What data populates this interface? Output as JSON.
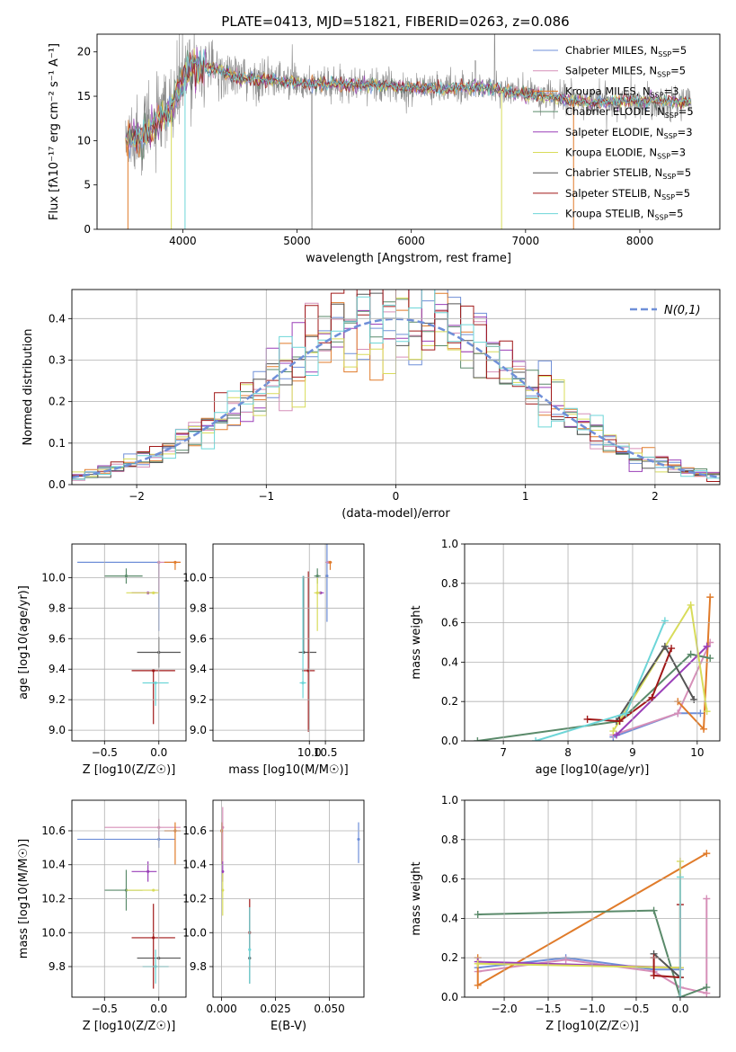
{
  "title": "PLATE=0413, MJD=51821, FIBERID=0263, z=0.086",
  "colors": {
    "chabrier_miles": "#6f8fd8",
    "salpeter_miles": "#d68fb8",
    "kroupa_miles": "#e07b2a",
    "chabrier_elodie": "#5a8a6a",
    "salpeter_elodie": "#9a3fb8",
    "kroupa_elodie": "#d8dc5a",
    "chabrier_stelib": "#555555",
    "salpeter_stelib": "#a01818",
    "kroupa_stelib": "#6dd6d8",
    "grid": "#b0b0b0"
  },
  "chart_data": [
    {
      "id": "spectrum",
      "type": "line",
      "xlabel": "wavelength [Angstrom, rest frame]",
      "ylabel": "Flux [fλ10⁻¹⁷ erg cm⁻² s⁻¹ A⁻¹]",
      "xlim": [
        3250,
        8700
      ],
      "ylim": [
        0,
        22
      ],
      "xticks": [
        4000,
        5000,
        6000,
        7000,
        8000
      ],
      "yticks": [
        0,
        5,
        10,
        15,
        20
      ],
      "grid": false,
      "legend_position": "top-right",
      "legend": [
        "Chabrier MILES, N_SSP=5",
        "Salpeter MILES, N_SSP=5",
        "Kroupa MILES, N_SSP=3",
        "Chabrier ELODIE, N_SSP=5",
        "Salpeter ELODIE, N_SSP=3",
        "Kroupa ELODIE, N_SSP=3",
        "Chabrier STELIB, N_SSP=5",
        "Salpeter STELIB, N_SSP=5",
        "Kroupa STELIB, N_SSP=5"
      ],
      "continuum": {
        "x": [
          3500,
          3700,
          3900,
          4000,
          4100,
          4300,
          4500,
          4800,
          5000,
          5300,
          5600,
          6000,
          6300,
          6600,
          6800,
          7000,
          7200,
          7400,
          7600,
          7800,
          8000,
          8200,
          8450
        ],
        "y": [
          10.2,
          11.0,
          13.5,
          16.8,
          18.5,
          18.0,
          17.0,
          16.7,
          16.5,
          16.4,
          16.3,
          16.0,
          15.9,
          16.0,
          15.6,
          15.3,
          14.9,
          14.5,
          14.3,
          14.4,
          14.5,
          14.4,
          14.3
        ]
      }
    },
    {
      "id": "residuals",
      "type": "histogram",
      "xlabel": "(data-model)/error",
      "ylabel": "Normed distribution",
      "xlim": [
        -2.5,
        2.5
      ],
      "ylim": [
        0,
        0.47
      ],
      "xticks": [
        -2,
        -1,
        0,
        1,
        2
      ],
      "yticks": [
        0.0,
        0.1,
        0.2,
        0.3,
        0.4
      ],
      "grid": true,
      "legend_position": "top-right",
      "legend": [
        "N(0,1)"
      ],
      "bin_width": 0.1
    },
    {
      "id": "age-vs-Z",
      "type": "scatter",
      "xlabel": "Z [log10(Z/Z☉)]",
      "ylabel": "age  [log10(age/yr)]",
      "xlim": [
        -0.8,
        0.25
      ],
      "ylim": [
        8.93,
        10.22
      ],
      "xticks": [
        -0.5,
        0.0
      ],
      "yticks": [
        9.0,
        9.2,
        9.4,
        9.6,
        9.8,
        10.0
      ],
      "grid": true,
      "points": [
        {
          "series": "chabrier_miles",
          "x": 0.0,
          "y": 10.1,
          "xerr": [
            0.75,
            0.0
          ],
          "yerr": [
            0.45,
            0.0
          ]
        },
        {
          "series": "salpeter_miles",
          "x": 0.0,
          "y": 10.1,
          "xerr": [
            0.0,
            0.2
          ],
          "yerr": [
            0.2,
            0.0
          ]
        },
        {
          "series": "kroupa_miles",
          "x": 0.15,
          "y": 10.1,
          "xerr": [
            0.1,
            0.05
          ],
          "yerr": [
            0.05,
            0.0
          ]
        },
        {
          "series": "chabrier_elodie",
          "x": -0.3,
          "y": 10.01,
          "xerr": [
            0.2,
            0.15
          ],
          "yerr": [
            0.05,
            0.05
          ]
        },
        {
          "series": "salpeter_elodie",
          "x": -0.1,
          "y": 9.9,
          "xerr": [
            0.15,
            0.08
          ],
          "yerr": [
            0.0,
            0.0
          ]
        },
        {
          "series": "kroupa_elodie",
          "x": -0.05,
          "y": 9.9,
          "xerr": [
            0.25,
            0.05
          ],
          "yerr": [
            0.0,
            0.0
          ]
        },
        {
          "series": "chabrier_stelib",
          "x": 0.0,
          "y": 9.51,
          "xerr": [
            0.2,
            0.2
          ],
          "yerr": [
            0.1,
            0.1
          ]
        },
        {
          "series": "salpeter_stelib",
          "x": -0.05,
          "y": 9.39,
          "xerr": [
            0.2,
            0.2
          ],
          "yerr": [
            0.35,
            0.0
          ]
        },
        {
          "series": "kroupa_stelib",
          "x": -0.03,
          "y": 9.31,
          "xerr": [
            0.12,
            0.12
          ],
          "yerr": [
            0.15,
            0.0
          ]
        }
      ]
    },
    {
      "id": "age-vs-mass",
      "type": "scatter",
      "xlabel": "mass [log10(M/M☉)]",
      "ylabel": "",
      "xlim": [
        7.0,
        11.7
      ],
      "ylim": [
        8.93,
        10.22
      ],
      "xticks": [
        10.0,
        10.5
      ],
      "yticks": [
        9.0,
        9.2,
        9.4,
        9.6,
        9.8,
        10.0
      ],
      "grid": true,
      "points": [
        {
          "series": "chabrier_miles",
          "x": 10.55,
          "y": 10.01,
          "xerr": [
            0.02,
            0.02
          ],
          "yerr": [
            0.3,
            0.3
          ]
        },
        {
          "series": "salpeter_miles",
          "x": 10.6,
          "y": 10.1,
          "xerr": [
            0.1,
            0.1
          ],
          "yerr": [
            0.0,
            0.0
          ]
        },
        {
          "series": "kroupa_miles",
          "x": 10.65,
          "y": 10.1,
          "xerr": [
            0.05,
            0.05
          ],
          "yerr": [
            0.05,
            0.0
          ]
        },
        {
          "series": "chabrier_elodie",
          "x": 10.25,
          "y": 10.01,
          "xerr": [
            0.1,
            0.1
          ],
          "yerr": [
            0.05,
            0.05
          ]
        },
        {
          "series": "salpeter_elodie",
          "x": 10.35,
          "y": 9.9,
          "xerr": [
            0.1,
            0.1
          ],
          "yerr": [
            0.0,
            0.0
          ]
        },
        {
          "series": "kroupa_elodie",
          "x": 10.25,
          "y": 9.9,
          "xerr": [
            0.1,
            0.1
          ],
          "yerr": [
            0.25,
            0.1
          ]
        },
        {
          "series": "chabrier_stelib",
          "x": 9.82,
          "y": 9.51,
          "xerr": [
            0.15,
            0.4
          ],
          "yerr": [
            0.0,
            0.5
          ]
        },
        {
          "series": "salpeter_stelib",
          "x": 9.97,
          "y": 9.39,
          "xerr": [
            0.2,
            0.2
          ],
          "yerr": [
            0.4,
            0.65
          ]
        },
        {
          "series": "kroupa_stelib",
          "x": 9.8,
          "y": 9.31,
          "xerr": [
            0.1,
            0.1
          ],
          "yerr": [
            0.1,
            0.7
          ]
        }
      ]
    },
    {
      "id": "mass-weight-vs-age",
      "type": "line",
      "xlabel": "age  [log10(age/yr)]",
      "ylabel": "mass weight",
      "xlim": [
        6.4,
        10.35
      ],
      "ylim": [
        0.0,
        1.0
      ],
      "xticks": [
        7,
        8,
        9,
        10
      ],
      "yticks": [
        0.0,
        0.2,
        0.4,
        0.6,
        0.8,
        1.0
      ],
      "grid": true,
      "series": [
        {
          "name": "chabrier_miles",
          "x": [
            8.7,
            9.7,
            10.05
          ],
          "y": [
            0.02,
            0.14,
            0.14
          ]
        },
        {
          "name": "salpeter_miles",
          "x": [
            8.7,
            9.7,
            10.2
          ],
          "y": [
            0.03,
            0.14,
            0.5
          ]
        },
        {
          "name": "kroupa_miles",
          "x": [
            9.7,
            10.1,
            10.2
          ],
          "y": [
            0.2,
            0.06,
            0.73
          ]
        },
        {
          "name": "chabrier_elodie",
          "x": [
            6.6,
            8.8,
            9.9,
            10.2
          ],
          "y": [
            0.0,
            0.1,
            0.44,
            0.42
          ]
        },
        {
          "name": "salpeter_elodie",
          "x": [
            8.75,
            10.15
          ],
          "y": [
            0.03,
            0.48
          ]
        },
        {
          "name": "kroupa_elodie",
          "x": [
            8.7,
            9.9,
            10.15
          ],
          "y": [
            0.05,
            0.69,
            0.15
          ]
        },
        {
          "name": "chabrier_stelib",
          "x": [
            8.75,
            9.5,
            9.95
          ],
          "y": [
            0.1,
            0.48,
            0.21
          ]
        },
        {
          "name": "salpeter_stelib",
          "x": [
            8.3,
            8.8,
            9.3,
            9.6
          ],
          "y": [
            0.11,
            0.1,
            0.22,
            0.47
          ]
        },
        {
          "name": "kroupa_stelib",
          "x": [
            7.5,
            8.9,
            9.5
          ],
          "y": [
            0.0,
            0.14,
            0.61
          ]
        }
      ]
    },
    {
      "id": "mass-vs-Z",
      "type": "scatter",
      "xlabel": "Z [log10(Z/Z☉)]",
      "ylabel": "mass [log10(M/M☉)]",
      "xlim": [
        -0.8,
        0.25
      ],
      "ylim": [
        9.62,
        10.78
      ],
      "xticks": [
        -0.5,
        0.0
      ],
      "yticks": [
        9.8,
        10.0,
        10.2,
        10.4,
        10.6
      ],
      "grid": true,
      "points": [
        {
          "series": "chabrier_miles",
          "x": 0.0,
          "y": 10.55,
          "xerr": [
            0.75,
            0.15
          ],
          "yerr": [
            0.05,
            0.05
          ]
        },
        {
          "series": "salpeter_miles",
          "x": 0.0,
          "y": 10.62,
          "xerr": [
            0.5,
            0.2
          ],
          "yerr": [
            0.05,
            0.05
          ]
        },
        {
          "series": "kroupa_miles",
          "x": 0.15,
          "y": 10.6,
          "xerr": [
            0.1,
            0.05
          ],
          "yerr": [
            0.2,
            0.05
          ]
        },
        {
          "series": "chabrier_elodie",
          "x": -0.3,
          "y": 10.25,
          "xerr": [
            0.2,
            0.15
          ],
          "yerr": [
            0.12,
            0.12
          ]
        },
        {
          "series": "salpeter_elodie",
          "x": -0.1,
          "y": 10.36,
          "xerr": [
            0.15,
            0.08
          ],
          "yerr": [
            0.06,
            0.06
          ]
        },
        {
          "series": "kroupa_elodie",
          "x": -0.05,
          "y": 10.25,
          "xerr": [
            0.25,
            0.05
          ],
          "yerr": [
            0.0,
            0.0
          ]
        },
        {
          "series": "chabrier_stelib",
          "x": 0.0,
          "y": 9.85,
          "xerr": [
            0.2,
            0.2
          ],
          "yerr": [
            0.0,
            0.0
          ]
        },
        {
          "series": "salpeter_stelib",
          "x": -0.05,
          "y": 9.97,
          "xerr": [
            0.2,
            0.2
          ],
          "yerr": [
            0.3,
            0.2
          ]
        },
        {
          "series": "kroupa_stelib",
          "x": -0.03,
          "y": 9.8,
          "xerr": [
            0.12,
            0.12
          ],
          "yerr": [
            0.1,
            0.1
          ]
        }
      ]
    },
    {
      "id": "mass-vs-ebv",
      "type": "scatter",
      "xlabel": "E(B-V)",
      "ylabel": "",
      "xlim": [
        -0.004,
        0.066
      ],
      "ylim": [
        9.62,
        10.78
      ],
      "xticks": [
        0.0,
        0.025,
        0.05
      ],
      "yticks": [
        9.8,
        10.0,
        10.2,
        10.4,
        10.6
      ],
      "grid": true,
      "points": [
        {
          "series": "chabrier_miles",
          "x": 0.0635,
          "y": 10.55,
          "yerr": [
            0.14,
            0.1
          ]
        },
        {
          "series": "salpeter_miles",
          "x": 0.0005,
          "y": 10.62,
          "yerr": [
            0.2,
            0.12
          ]
        },
        {
          "series": "kroupa_miles",
          "x": 0.0,
          "y": 10.6,
          "yerr": [
            0.2,
            0.05
          ]
        },
        {
          "series": "salpeter_elodie",
          "x": 0.0005,
          "y": 10.36,
          "yerr": [
            0.06,
            0.06
          ]
        },
        {
          "series": "kroupa_elodie",
          "x": 0.0005,
          "y": 10.25,
          "yerr": [
            0.15,
            0.1
          ]
        },
        {
          "series": "chabrier_stelib",
          "x": 0.013,
          "y": 9.85,
          "yerr": [
            0.15,
            0.3
          ]
        },
        {
          "series": "salpeter_stelib",
          "x": 0.013,
          "y": 10.0,
          "yerr": [
            0.1,
            0.2
          ]
        },
        {
          "series": "kroupa_stelib",
          "x": 0.013,
          "y": 9.9,
          "yerr": [
            0.2,
            0.25
          ]
        }
      ]
    },
    {
      "id": "mass-weight-vs-Z",
      "type": "line",
      "xlabel": "Z [log10(Z/Z☉)]",
      "ylabel": "mass weight",
      "xlim": [
        -2.45,
        0.45
      ],
      "ylim": [
        0.0,
        1.0
      ],
      "xticks": [
        -2.0,
        -1.5,
        -1.0,
        -0.5,
        0.0
      ],
      "yticks": [
        0.0,
        0.2,
        0.4,
        0.6,
        0.8,
        1.0
      ],
      "grid": true,
      "series": [
        {
          "name": "chabrier_miles",
          "x": [
            -2.3,
            -1.3,
            -0.3,
            0.0
          ],
          "y": [
            0.15,
            0.2,
            0.14,
            0.14
          ]
        },
        {
          "name": "salpeter_miles",
          "x": [
            -2.3,
            -1.3,
            -0.3,
            0.0,
            0.3,
            0.3
          ],
          "y": [
            0.13,
            0.19,
            0.13,
            0.05,
            0.02,
            0.5
          ]
        },
        {
          "name": "kroupa_miles",
          "x": [
            -2.3,
            -2.3,
            0.3
          ],
          "y": [
            0.2,
            0.06,
            0.73
          ]
        },
        {
          "name": "chabrier_elodie",
          "x": [
            -2.3,
            -0.3,
            0.0,
            0.3
          ],
          "y": [
            0.42,
            0.44,
            0.0,
            0.05
          ]
        },
        {
          "name": "salpeter_elodie",
          "x": [
            -2.3,
            0.0
          ],
          "y": [
            0.18,
            0.15
          ]
        },
        {
          "name": "kroupa_elodie",
          "x": [
            -2.3,
            0.0,
            0.0
          ],
          "y": [
            0.17,
            0.15,
            0.69
          ]
        },
        {
          "name": "chabrier_stelib",
          "x": [
            -0.3,
            0.0
          ],
          "y": [
            0.22,
            0.1
          ]
        },
        {
          "name": "salpeter_stelib",
          "x": [
            -0.3,
            -0.3,
            0.0,
            0.0
          ],
          "y": [
            0.2,
            0.11,
            0.1,
            0.47
          ]
        },
        {
          "name": "kroupa_stelib",
          "x": [
            0.0,
            0.0
          ],
          "y": [
            0.0,
            0.61
          ]
        }
      ]
    }
  ]
}
